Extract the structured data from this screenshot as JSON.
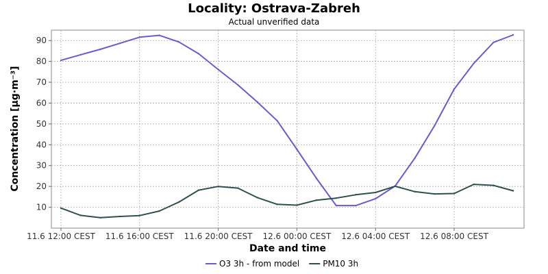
{
  "chart_data": {
    "type": "line",
    "title": "Locality: Ostrava-Zabreh",
    "subtitle": "Actual unverified data",
    "xlabel": "Date and time",
    "ylabel": "Concentration [µg·m⁻³]",
    "x_tick_labels": [
      "11.6 12:00 CEST",
      "11.6 16:00 CEST",
      "11.6 20:00 CEST",
      "12.6 00:00 CEST",
      "12.6 04:00 CEST",
      "12.6 08:00 CEST"
    ],
    "y_ticks": [
      10,
      20,
      30,
      40,
      50,
      60,
      70,
      80,
      90
    ],
    "ylim": [
      0,
      95
    ],
    "xlim": [
      "11.6 11:00",
      "12.6 12:00"
    ],
    "x": [
      "11.6 12:00",
      "11.6 13:00",
      "11.6 14:00",
      "11.6 15:00",
      "11.6 16:00",
      "11.6 17:00",
      "11.6 18:00",
      "11.6 19:00",
      "11.6 20:00",
      "11.6 21:00",
      "11.6 22:00",
      "11.6 23:00",
      "12.6 00:00",
      "12.6 01:00",
      "12.6 02:00",
      "12.6 03:00",
      "12.6 04:00",
      "12.6 05:00",
      "12.6 06:00",
      "12.6 07:00",
      "12.6 08:00",
      "12.6 09:00",
      "12.6 10:00",
      "12.6 11:00"
    ],
    "series": [
      {
        "name": "O3 3h - from model",
        "color": "#6a5acd",
        "values": [
          80.5,
          83.2,
          85.8,
          88.7,
          91.6,
          92.5,
          89.3,
          83.7,
          76.1,
          68.7,
          60.4,
          51.5,
          37.8,
          23.8,
          10.8,
          10.8,
          14.1,
          20.2,
          33.6,
          49.1,
          66.7,
          79.1,
          89.1,
          92.7
        ]
      },
      {
        "name": "PM10 3h",
        "color": "#2f4f4f",
        "values": [
          9.6,
          6.1,
          5.0,
          5.6,
          6.0,
          8.2,
          12.5,
          18.2,
          20.0,
          19.2,
          14.6,
          11.4,
          11.0,
          13.4,
          14.4,
          16.0,
          17.1,
          20.1,
          17.5,
          16.4,
          16.6,
          21.0,
          20.5,
          17.9
        ]
      }
    ],
    "grid": true,
    "legend_position": "bottom-center"
  }
}
